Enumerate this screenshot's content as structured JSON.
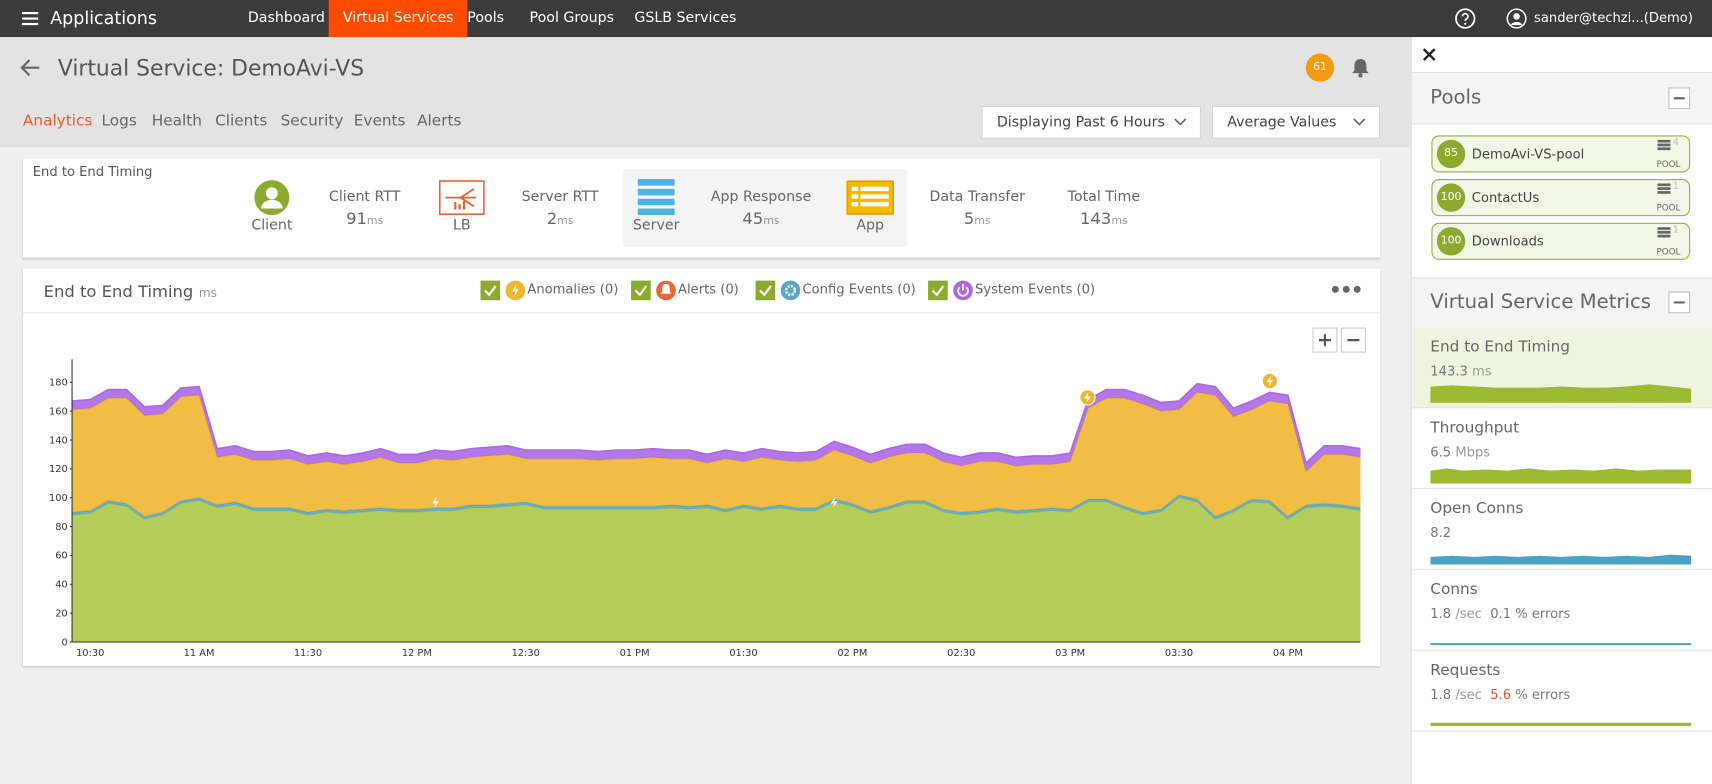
{
  "nav": {
    "app": "Applications",
    "items": [
      "Dashboard",
      "Virtual Services",
      "Pools",
      "Pool Groups",
      "GSLB Services"
    ],
    "active": 1,
    "user": "sander@techzi...(Demo)"
  },
  "header": {
    "title": "Virtual Service: DemoAvi-VS",
    "badge": "61"
  },
  "tabs": [
    "Analytics",
    "Logs",
    "Health",
    "Clients",
    "Security",
    "Events",
    "Alerts"
  ],
  "filters": [
    "Displaying Past 6 Hours",
    "Average Values"
  ],
  "timing": {
    "title": "End to End Timing",
    "icons": [
      "Client",
      "LB",
      "Server",
      "App"
    ],
    "items": [
      {
        "label": "Client RTT",
        "value": "91",
        "unit": "ms"
      },
      {
        "label": "Server RTT",
        "value": "2",
        "unit": "ms"
      },
      {
        "label": "App Response",
        "value": "45",
        "unit": "ms"
      },
      {
        "label": "Data Transfer",
        "value": "5",
        "unit": "ms"
      },
      {
        "label": "Total Time",
        "value": "143",
        "unit": "ms"
      }
    ]
  },
  "chart_toolbar": {
    "title": "End to End Timing",
    "unit": "ms",
    "toggles": [
      "Anomalies (0)",
      "Alerts (0)",
      "Config Events (0)",
      "System Events (0)"
    ]
  },
  "chart_data": {
    "type": "area",
    "stacked": true,
    "categories": [
      null,
      "10:30",
      null,
      null,
      null,
      null,
      null,
      "11 AM",
      null,
      null,
      null,
      null,
      null,
      "11:30",
      null,
      null,
      null,
      null,
      null,
      "12 PM",
      null,
      null,
      null,
      null,
      null,
      "12:30",
      null,
      null,
      null,
      null,
      null,
      "01 PM",
      null,
      null,
      null,
      null,
      null,
      "01:30",
      null,
      null,
      null,
      null,
      null,
      "02 PM",
      null,
      null,
      null,
      null,
      null,
      "02:30",
      null,
      null,
      null,
      null,
      null,
      "03 PM",
      null,
      null,
      null,
      null,
      null,
      "03:30",
      null,
      null,
      null,
      null,
      null,
      "04 PM",
      null,
      null,
      null,
      null
    ],
    "series": [
      {
        "color": "#adc948",
        "values": [
          88,
          89,
          96,
          94,
          85,
          88,
          96,
          98,
          93,
          95,
          91,
          91,
          91,
          88,
          90,
          89,
          90,
          91,
          90,
          90,
          91,
          91,
          93,
          93,
          94,
          95,
          92,
          92,
          92,
          92,
          92,
          92,
          92,
          93,
          92,
          93,
          90,
          93,
          91,
          93,
          91,
          91,
          97,
          94,
          89,
          92,
          96,
          96,
          90,
          88,
          89,
          91,
          89,
          90,
          91,
          90,
          97,
          97,
          92,
          88,
          90,
          100,
          97,
          85,
          90,
          97,
          96,
          85,
          93,
          94,
          93,
          91
        ]
      },
      {
        "color": "#5aa6c5",
        "values": [
          2,
          2,
          2,
          2,
          2,
          2,
          2,
          2,
          2,
          2,
          2,
          2,
          2,
          2,
          2,
          2,
          2,
          2,
          2,
          2,
          2,
          2,
          2,
          2,
          2,
          2,
          2,
          2,
          2,
          2,
          2,
          2,
          2,
          2,
          2,
          2,
          2,
          2,
          2,
          2,
          2,
          2,
          2,
          2,
          2,
          2,
          2,
          2,
          2,
          2,
          2,
          2,
          2,
          2,
          2,
          2,
          2,
          2,
          2,
          2,
          2,
          2,
          2,
          2,
          2,
          2,
          2,
          2,
          2,
          2,
          2,
          2
        ]
      },
      {
        "color": "#efb630",
        "values": [
          71,
          71,
          71,
          73,
          70,
          68,
          72,
          71,
          33,
          33,
          33,
          33,
          34,
          33,
          33,
          32,
          33,
          35,
          32,
          32,
          34,
          33,
          33,
          34,
          34,
          30,
          33,
          33,
          33,
          32,
          33,
          33,
          34,
          32,
          33,
          29,
          35,
          30,
          35,
          31,
          32,
          33,
          34,
          33,
          33,
          34,
          33,
          33,
          33,
          32,
          34,
          32,
          31,
          31,
          30,
          33,
          63,
          70,
          75,
          75,
          68,
          59,
          74,
          84,
          64,
          62,
          69,
          78,
          23,
          34,
          35,
          35
        ]
      },
      {
        "color": "#ac68e4",
        "values": [
          6,
          6,
          6,
          6,
          6,
          6,
          6,
          6,
          6,
          6,
          6,
          6,
          6,
          6,
          6,
          6,
          6,
          6,
          6,
          6,
          6,
          6,
          6,
          6,
          6,
          6,
          6,
          6,
          6,
          6,
          6,
          6,
          6,
          6,
          6,
          6,
          6,
          6,
          6,
          6,
          6,
          6,
          6,
          6,
          6,
          6,
          6,
          6,
          6,
          6,
          6,
          6,
          6,
          6,
          6,
          6,
          6,
          6,
          6,
          6,
          6,
          6,
          6,
          6,
          6,
          6,
          6,
          6,
          6,
          6,
          6,
          6
        ]
      }
    ],
    "ylim": [
      0,
      196
    ],
    "yticks": [
      0,
      20,
      40,
      60,
      80,
      100,
      120,
      140,
      160,
      180
    ],
    "grid": false
  },
  "panel": {
    "pools_title": "Pools",
    "pools": [
      {
        "health": "85",
        "name": "DemoAvi-VS-pool",
        "count": "4",
        "tag": "POOL"
      },
      {
        "health": "100",
        "name": "ContactUs",
        "count": "1",
        "tag": "POOL"
      },
      {
        "health": "100",
        "name": "Downloads",
        "count": "1",
        "tag": "POOL"
      }
    ],
    "metrics_title": "Virtual Service Metrics",
    "metrics": [
      {
        "name": "End to End Timing",
        "value": "143.3",
        "unit": "ms"
      },
      {
        "name": "Throughput",
        "value": "6.5",
        "unit": "Mbps"
      },
      {
        "name": "Open Conns",
        "value": "8.2"
      },
      {
        "name": "Conns",
        "value": "1.8",
        "unit": "/sec",
        "errors": "0.1",
        "errors_unit": "% errors"
      },
      {
        "name": "Requests",
        "value": "1.8",
        "unit": "/sec",
        "errors": "5.6",
        "errors_unit": "% errors"
      }
    ]
  }
}
